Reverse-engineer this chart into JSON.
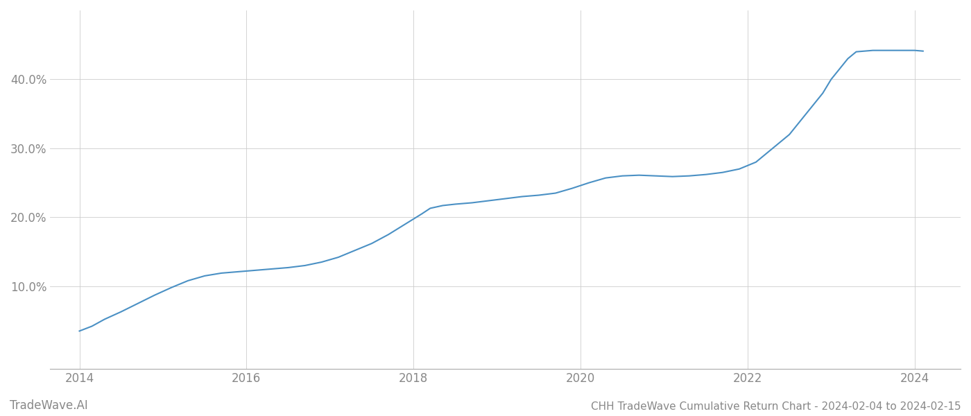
{
  "title": "CHH TradeWave Cumulative Return Chart - 2024-02-04 to 2024-02-15",
  "watermark": "TradeWave.AI",
  "line_color": "#4a90c4",
  "line_width": 1.5,
  "background_color": "#ffffff",
  "grid_color": "#cccccc",
  "x_values": [
    2014.0,
    2014.15,
    2014.3,
    2014.5,
    2014.7,
    2014.9,
    2015.1,
    2015.3,
    2015.5,
    2015.7,
    2015.9,
    2016.1,
    2016.3,
    2016.5,
    2016.7,
    2016.9,
    2017.1,
    2017.3,
    2017.5,
    2017.7,
    2017.9,
    2018.1,
    2018.2,
    2018.35,
    2018.5,
    2018.7,
    2018.9,
    2019.1,
    2019.3,
    2019.5,
    2019.7,
    2019.9,
    2020.1,
    2020.3,
    2020.5,
    2020.7,
    2020.9,
    2021.1,
    2021.3,
    2021.5,
    2021.7,
    2021.9,
    2022.1,
    2022.3,
    2022.5,
    2022.7,
    2022.9,
    2023.0,
    2023.1,
    2023.2,
    2023.3,
    2023.5,
    2023.7,
    2023.9,
    2024.0,
    2024.1
  ],
  "y_values": [
    3.5,
    4.2,
    5.2,
    6.3,
    7.5,
    8.7,
    9.8,
    10.8,
    11.5,
    11.9,
    12.1,
    12.3,
    12.5,
    12.7,
    13.0,
    13.5,
    14.2,
    15.2,
    16.2,
    17.5,
    19.0,
    20.5,
    21.3,
    21.7,
    21.9,
    22.1,
    22.4,
    22.7,
    23.0,
    23.2,
    23.5,
    24.2,
    25.0,
    25.7,
    26.0,
    26.1,
    26.0,
    25.9,
    26.0,
    26.2,
    26.5,
    27.0,
    28.0,
    30.0,
    32.0,
    35.0,
    38.0,
    40.0,
    41.5,
    43.0,
    44.0,
    44.2,
    44.2,
    44.2,
    44.2,
    44.1
  ],
  "xlim": [
    2013.65,
    2024.55
  ],
  "ylim": [
    -2,
    50
  ],
  "yticks": [
    10.0,
    20.0,
    30.0,
    40.0
  ],
  "ytick_labels": [
    "10.0%",
    "20.0%",
    "30.0%",
    "40.0%"
  ],
  "xticks": [
    2014,
    2016,
    2018,
    2020,
    2022,
    2024
  ],
  "tick_color": "#888888",
  "label_fontsize": 12,
  "title_fontsize": 11,
  "watermark_fontsize": 12
}
